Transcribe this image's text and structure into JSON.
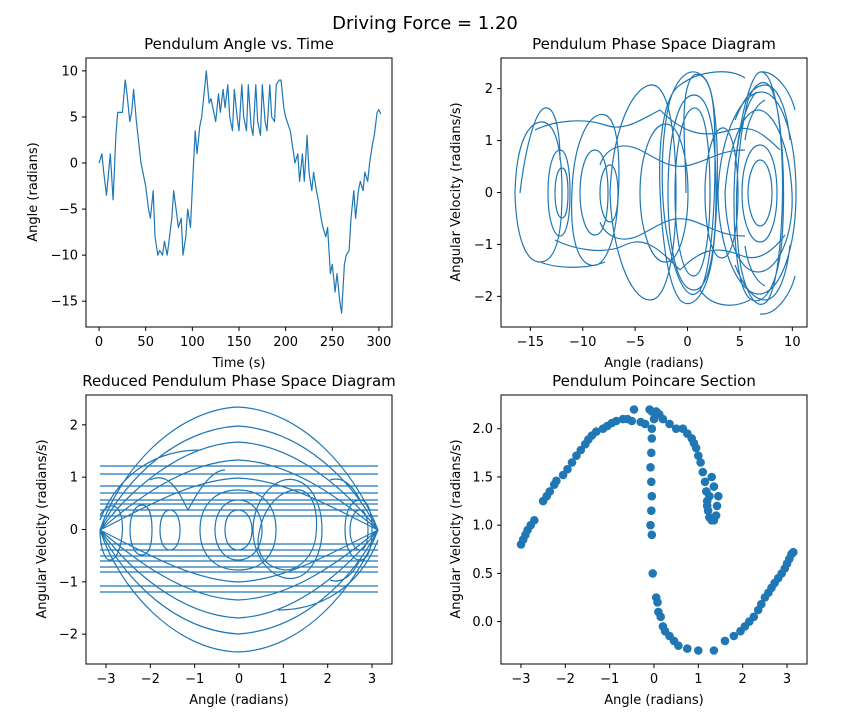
{
  "figure": {
    "suptitle": "Driving Force = 1.20"
  },
  "colors": {
    "series": "#1f77b4",
    "axes": "#000000"
  },
  "chart_data": [
    {
      "type": "line",
      "title": "Pendulum Angle vs. Time",
      "xlabel": "Time (s)",
      "ylabel": "Angle (radians)",
      "xlim": [
        -14,
        314
      ],
      "ylim": [
        -17.8,
        11.4
      ],
      "xticks": [
        0,
        50,
        100,
        150,
        200,
        250,
        300
      ],
      "yticks": [
        -15,
        -10,
        -5,
        0,
        5,
        10
      ],
      "xticklabels": [
        "0",
        "50",
        "100",
        "150",
        "200",
        "250",
        "300"
      ],
      "yticklabels": [
        "−15",
        "−10",
        "−5",
        "0",
        "5",
        "10"
      ],
      "series": [
        {
          "x": [
            0,
            3,
            5,
            8,
            12,
            15,
            18,
            20,
            25,
            28,
            30,
            33,
            35,
            37,
            40,
            45,
            50,
            53,
            55,
            58,
            60,
            63,
            65,
            68,
            70,
            73,
            75,
            78,
            80,
            85,
            88,
            90,
            93,
            95,
            98,
            100,
            103,
            105,
            108,
            110,
            113,
            115,
            118,
            120,
            123,
            125,
            128,
            130,
            133,
            135,
            138,
            140,
            143,
            145,
            148,
            150,
            153,
            155,
            158,
            160,
            163,
            165,
            168,
            170,
            173,
            175,
            178,
            180,
            183,
            185,
            188,
            190,
            193,
            195,
            198,
            200,
            205,
            210,
            213,
            215,
            218,
            220,
            223,
            225,
            228,
            230,
            233,
            235,
            238,
            240,
            243,
            245,
            248,
            250,
            253,
            255,
            258,
            260,
            263,
            265,
            268,
            270,
            273,
            275,
            278,
            280,
            283,
            285,
            288,
            290,
            293,
            295,
            298,
            300,
            302
          ],
          "y": [
            0,
            1,
            -1,
            -3.5,
            1,
            -4,
            3,
            5.5,
            5.5,
            9,
            7.5,
            4.5,
            5.5,
            8,
            4.5,
            0,
            -2.5,
            -5,
            -6,
            -3,
            -8,
            -10,
            -9.5,
            -10,
            -8.5,
            -10,
            -8.5,
            -6,
            -3,
            -7,
            -6,
            -10,
            -8,
            -5,
            -7,
            -2.5,
            3.5,
            1,
            4,
            5,
            8,
            10,
            6.5,
            7,
            5.5,
            4.5,
            7.5,
            5.5,
            8,
            6,
            8.5,
            5,
            3.5,
            8,
            5,
            3.5,
            8.5,
            5,
            3.5,
            8.5,
            4,
            3,
            8.5,
            4.5,
            3,
            8.5,
            4.5,
            3.5,
            8.5,
            5,
            4.5,
            8.5,
            9,
            9,
            6,
            5,
            3.5,
            0,
            1,
            -2,
            1,
            -2,
            3,
            -1,
            -3,
            -1,
            -3,
            -4,
            -6,
            -7,
            -8,
            -7,
            -12,
            -11,
            -14,
            -12,
            -15,
            -16.3,
            -11,
            -10,
            -9.5,
            -6,
            -3,
            -6,
            -3,
            -2,
            -3,
            -1,
            -2,
            0,
            2,
            3,
            5.5,
            5.8,
            5.3
          ]
        }
      ]
    },
    {
      "type": "line",
      "title": "Pendulum Phase Space Diagram",
      "xlabel": "Angle (radians)",
      "ylabel": "Angular Velocity (radians/s)",
      "xlim": [
        -17.8,
        11.4
      ],
      "ylim": [
        -2.59,
        2.59
      ],
      "xticks": [
        -15,
        -10,
        -5,
        0,
        5,
        10
      ],
      "yticks": [
        -2,
        -1,
        0,
        1,
        2
      ],
      "xticklabels": [
        "−15",
        "−10",
        "−5",
        "0",
        "5",
        "10"
      ],
      "yticklabels": [
        "−2",
        "−1",
        "0",
        "1",
        "2"
      ]
    },
    {
      "type": "line",
      "title": "Reduced Pendulum Phase Space Diagram",
      "xlabel": "Angle (radians)",
      "ylabel": "Angular Velocity (radians/s)",
      "xlim": [
        -3.45,
        3.45
      ],
      "ylim": [
        -2.57,
        2.57
      ],
      "xticks": [
        -3,
        -2,
        -1,
        0,
        1,
        2,
        3
      ],
      "yticks": [
        -2,
        -1,
        0,
        1,
        2
      ],
      "xticklabels": [
        "−3",
        "−2",
        "−1",
        "0",
        "1",
        "2",
        "3"
      ],
      "yticklabels": [
        "−2",
        "−1",
        "0",
        "1",
        "2"
      ]
    },
    {
      "type": "scatter",
      "title": "Pendulum Poincare Section",
      "xlabel": "Angle (radians)",
      "ylabel": "Angular Velocity (radians/s)",
      "xlim": [
        -3.45,
        3.45
      ],
      "ylim": [
        -0.44,
        2.35
      ],
      "xticks": [
        -3,
        -2,
        -1,
        0,
        1,
        2,
        3
      ],
      "yticks": [
        0.0,
        0.5,
        1.0,
        1.5,
        2.0
      ],
      "xticklabels": [
        "−3",
        "−2",
        "−1",
        "0",
        "1",
        "2",
        "3"
      ],
      "yticklabels": [
        "0.0",
        "0.5",
        "1.0",
        "1.5",
        "2.0"
      ],
      "points": [
        [
          -3.0,
          0.8
        ],
        [
          -2.95,
          0.85
        ],
        [
          -2.9,
          0.9
        ],
        [
          -2.85,
          0.95
        ],
        [
          -2.78,
          1.0
        ],
        [
          -2.7,
          1.05
        ],
        [
          -2.5,
          1.25
        ],
        [
          -2.42,
          1.3
        ],
        [
          -2.35,
          1.35
        ],
        [
          -2.25,
          1.42
        ],
        [
          -2.2,
          1.46
        ],
        [
          -2.05,
          1.52
        ],
        [
          -1.95,
          1.58
        ],
        [
          -1.85,
          1.65
        ],
        [
          -1.75,
          1.72
        ],
        [
          -1.65,
          1.78
        ],
        [
          -1.55,
          1.84
        ],
        [
          -1.48,
          1.89
        ],
        [
          -1.4,
          1.93
        ],
        [
          -1.3,
          1.97
        ],
        [
          -1.15,
          2.0
        ],
        [
          -1.05,
          2.03
        ],
        [
          -0.95,
          2.06
        ],
        [
          -0.85,
          2.08
        ],
        [
          -0.7,
          2.1
        ],
        [
          -0.6,
          2.1
        ],
        [
          -0.5,
          2.08
        ],
        [
          -0.45,
          2.2
        ],
        [
          -0.3,
          2.07
        ],
        [
          -0.2,
          2.05
        ],
        [
          -0.1,
          2.2
        ],
        [
          -0.05,
          2.18
        ],
        [
          0.0,
          2.1
        ],
        [
          0.05,
          2.18
        ],
        [
          0.12,
          2.15
        ],
        [
          0.2,
          2.1
        ],
        [
          0.35,
          2.05
        ],
        [
          0.5,
          2.0
        ],
        [
          0.65,
          2.0
        ],
        [
          0.75,
          1.95
        ],
        [
          0.85,
          1.9
        ],
        [
          0.9,
          1.85
        ],
        [
          0.95,
          1.8
        ],
        [
          1.0,
          1.72
        ],
        [
          1.05,
          1.65
        ],
        [
          1.1,
          1.55
        ],
        [
          1.15,
          1.45
        ],
        [
          1.18,
          1.35
        ],
        [
          1.2,
          1.25
        ],
        [
          1.22,
          1.15
        ],
        [
          1.25,
          1.08
        ],
        [
          1.3,
          1.05
        ],
        [
          1.35,
          1.05
        ],
        [
          1.4,
          1.1
        ],
        [
          1.42,
          1.2
        ],
        [
          1.45,
          1.3
        ],
        [
          1.35,
          1.4
        ],
        [
          1.3,
          1.5
        ],
        [
          1.25,
          1.3
        ],
        [
          1.2,
          1.2
        ],
        [
          -0.05,
          2.0
        ],
        [
          -0.05,
          1.9
        ],
        [
          -0.06,
          1.75
        ],
        [
          -0.08,
          1.6
        ],
        [
          -0.06,
          1.45
        ],
        [
          -0.05,
          1.3
        ],
        [
          -0.06,
          1.15
        ],
        [
          -0.08,
          1.0
        ],
        [
          -0.05,
          0.9
        ],
        [
          -0.03,
          0.5
        ],
        [
          0.05,
          0.25
        ],
        [
          0.08,
          0.2
        ],
        [
          0.1,
          0.1
        ],
        [
          0.15,
          0.05
        ],
        [
          0.2,
          -0.05
        ],
        [
          0.25,
          -0.1
        ],
        [
          0.35,
          -0.15
        ],
        [
          0.45,
          -0.2
        ],
        [
          0.55,
          -0.25
        ],
        [
          0.75,
          -0.28
        ],
        [
          1.0,
          -0.3
        ],
        [
          1.35,
          -0.3
        ],
        [
          1.6,
          -0.2
        ],
        [
          1.8,
          -0.15
        ],
        [
          1.95,
          -0.1
        ],
        [
          2.05,
          -0.05
        ],
        [
          2.15,
          0.0
        ],
        [
          2.25,
          0.05
        ],
        [
          2.35,
          0.12
        ],
        [
          2.42,
          0.18
        ],
        [
          2.5,
          0.25
        ],
        [
          2.58,
          0.3
        ],
        [
          2.65,
          0.35
        ],
        [
          2.72,
          0.4
        ],
        [
          2.8,
          0.45
        ],
        [
          2.88,
          0.5
        ],
        [
          2.95,
          0.55
        ],
        [
          3.0,
          0.6
        ],
        [
          3.05,
          0.65
        ],
        [
          3.1,
          0.7
        ],
        [
          3.14,
          0.72
        ]
      ]
    }
  ]
}
